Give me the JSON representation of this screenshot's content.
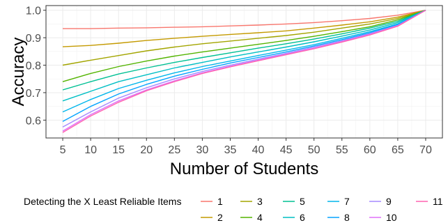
{
  "chart_data": {
    "type": "line",
    "title": "",
    "xlabel": "Number of Students",
    "ylabel": "Accuracy",
    "xlim": [
      5,
      70
    ],
    "ylim": [
      0.55,
      1.0
    ],
    "xticks": [
      5,
      10,
      15,
      20,
      25,
      30,
      35,
      40,
      45,
      50,
      55,
      60,
      65,
      70
    ],
    "yticks": [
      0.6,
      0.7,
      0.8,
      0.9,
      1.0
    ],
    "ytick_labels": [
      "0.6",
      "0.7",
      "0.8",
      "0.9",
      "1.0"
    ],
    "grid": true,
    "legend": {
      "title": "Detecting the X Least Reliable Items",
      "position": "bottom"
    },
    "series": [
      {
        "name": "1",
        "color": "#F8766D",
        "x": [
          5,
          10,
          15,
          20,
          25,
          30,
          35,
          40,
          45,
          50,
          55,
          60,
          65,
          70
        ],
        "y": [
          0.933,
          0.933,
          0.935,
          0.936,
          0.938,
          0.94,
          0.943,
          0.946,
          0.95,
          0.955,
          0.962,
          0.97,
          0.982,
          1.0
        ]
      },
      {
        "name": "2",
        "color": "#C49A00",
        "x": [
          5,
          10,
          15,
          20,
          25,
          30,
          35,
          40,
          45,
          50,
          55,
          60,
          65,
          70
        ],
        "y": [
          0.867,
          0.872,
          0.88,
          0.89,
          0.898,
          0.905,
          0.912,
          0.918,
          0.925,
          0.935,
          0.946,
          0.958,
          0.975,
          1.0
        ]
      },
      {
        "name": "3",
        "color": "#A3A500",
        "x": [
          5,
          10,
          15,
          20,
          25,
          30,
          35,
          40,
          45,
          50,
          55,
          60,
          65,
          70
        ],
        "y": [
          0.8,
          0.818,
          0.835,
          0.852,
          0.866,
          0.878,
          0.888,
          0.898,
          0.908,
          0.92,
          0.935,
          0.95,
          0.97,
          1.0
        ]
      },
      {
        "name": "4",
        "color": "#53B400",
        "x": [
          5,
          10,
          15,
          20,
          25,
          30,
          35,
          40,
          45,
          50,
          55,
          60,
          65,
          70
        ],
        "y": [
          0.74,
          0.77,
          0.795,
          0.815,
          0.833,
          0.848,
          0.862,
          0.876,
          0.89,
          0.905,
          0.922,
          0.94,
          0.965,
          1.0
        ]
      },
      {
        "name": "5",
        "color": "#00C094",
        "x": [
          5,
          10,
          15,
          20,
          25,
          30,
          35,
          40,
          45,
          50,
          55,
          60,
          65,
          70
        ],
        "y": [
          0.71,
          0.74,
          0.768,
          0.79,
          0.81,
          0.828,
          0.845,
          0.862,
          0.878,
          0.895,
          0.914,
          0.935,
          0.96,
          1.0
        ]
      },
      {
        "name": "6",
        "color": "#00BFC4",
        "x": [
          5,
          10,
          15,
          20,
          25,
          30,
          35,
          40,
          45,
          50,
          55,
          60,
          65,
          70
        ],
        "y": [
          0.67,
          0.705,
          0.74,
          0.765,
          0.79,
          0.81,
          0.83,
          0.848,
          0.866,
          0.885,
          0.906,
          0.928,
          0.955,
          1.0
        ]
      },
      {
        "name": "7",
        "color": "#00B6EB",
        "x": [
          5,
          10,
          15,
          20,
          25,
          30,
          35,
          40,
          45,
          50,
          55,
          60,
          65,
          70
        ],
        "y": [
          0.63,
          0.675,
          0.715,
          0.745,
          0.772,
          0.795,
          0.815,
          0.835,
          0.855,
          0.875,
          0.898,
          0.922,
          0.95,
          1.0
        ]
      },
      {
        "name": "8",
        "color": "#06A4FF",
        "x": [
          5,
          10,
          15,
          20,
          25,
          30,
          35,
          40,
          45,
          50,
          55,
          60,
          65,
          70
        ],
        "y": [
          0.595,
          0.65,
          0.695,
          0.73,
          0.76,
          0.785,
          0.808,
          0.828,
          0.848,
          0.87,
          0.893,
          0.918,
          0.948,
          1.0
        ]
      },
      {
        "name": "9",
        "color": "#A58AFF",
        "x": [
          5,
          10,
          15,
          20,
          25,
          30,
          35,
          40,
          45,
          50,
          55,
          60,
          65,
          70
        ],
        "y": [
          0.575,
          0.63,
          0.68,
          0.718,
          0.75,
          0.777,
          0.8,
          0.822,
          0.843,
          0.866,
          0.889,
          0.915,
          0.945,
          1.0
        ]
      },
      {
        "name": "10",
        "color": "#DF70F8",
        "x": [
          5,
          10,
          15,
          20,
          25,
          30,
          35,
          40,
          45,
          50,
          55,
          60,
          65,
          70
        ],
        "y": [
          0.56,
          0.62,
          0.67,
          0.71,
          0.743,
          0.772,
          0.796,
          0.818,
          0.84,
          0.862,
          0.886,
          0.912,
          0.943,
          1.0
        ]
      },
      {
        "name": "11",
        "color": "#FF64B0",
        "x": [
          5,
          10,
          15,
          20,
          25,
          30,
          35,
          40,
          45,
          50,
          55,
          60,
          65,
          70
        ],
        "y": [
          0.555,
          0.615,
          0.665,
          0.707,
          0.74,
          0.77,
          0.794,
          0.816,
          0.838,
          0.86,
          0.884,
          0.91,
          0.942,
          1.0
        ]
      }
    ]
  }
}
